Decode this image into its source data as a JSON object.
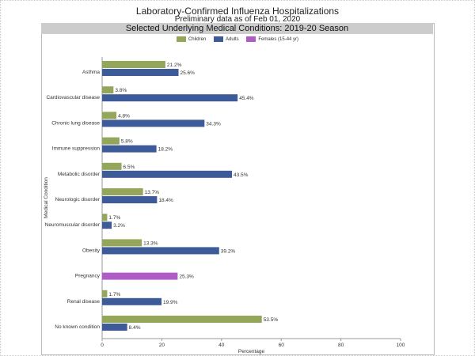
{
  "title": "Laboratory-Confirmed Influenza Hospitalizations",
  "subtitle": "Preliminary data as of Feb 01, 2020",
  "panel_title": "Selected Underlying Medical Conditions: 2019-20 Season",
  "colors": {
    "Children": "#94a65a",
    "Adults": "#3d5a99",
    "Females (15-44 yr)": "#b05cc7"
  },
  "chart_data": {
    "type": "bar",
    "orientation": "horizontal",
    "xlabel": "Percentage",
    "ylabel": "Medical Condition",
    "xlim": [
      0,
      100
    ],
    "xticks": [
      "0",
      "20",
      "40",
      "60",
      "80",
      "100"
    ],
    "legend": [
      "Children",
      "Adults",
      "Females (15-44 yr)"
    ],
    "legend_position": "top",
    "categories": [
      "Asthma",
      "Cardiovascular disease",
      "Chronic lung disease",
      "Immune suppression",
      "Metabolic disorder",
      "Neurologic disorder",
      "Neuromuscular disorder",
      "Obesity",
      "Pregnancy",
      "Renal disease",
      "No known condition"
    ],
    "series": [
      {
        "name": "Children",
        "values": [
          21.2,
          3.8,
          4.8,
          5.8,
          6.5,
          13.7,
          1.7,
          13.3,
          null,
          1.7,
          53.5
        ]
      },
      {
        "name": "Adults",
        "values": [
          25.6,
          45.4,
          34.3,
          18.2,
          43.5,
          18.4,
          3.2,
          39.2,
          null,
          19.9,
          8.4
        ]
      },
      {
        "name": "Females (15-44 yr)",
        "values": [
          null,
          null,
          null,
          null,
          null,
          null,
          null,
          null,
          25.3,
          null,
          null
        ]
      }
    ]
  }
}
